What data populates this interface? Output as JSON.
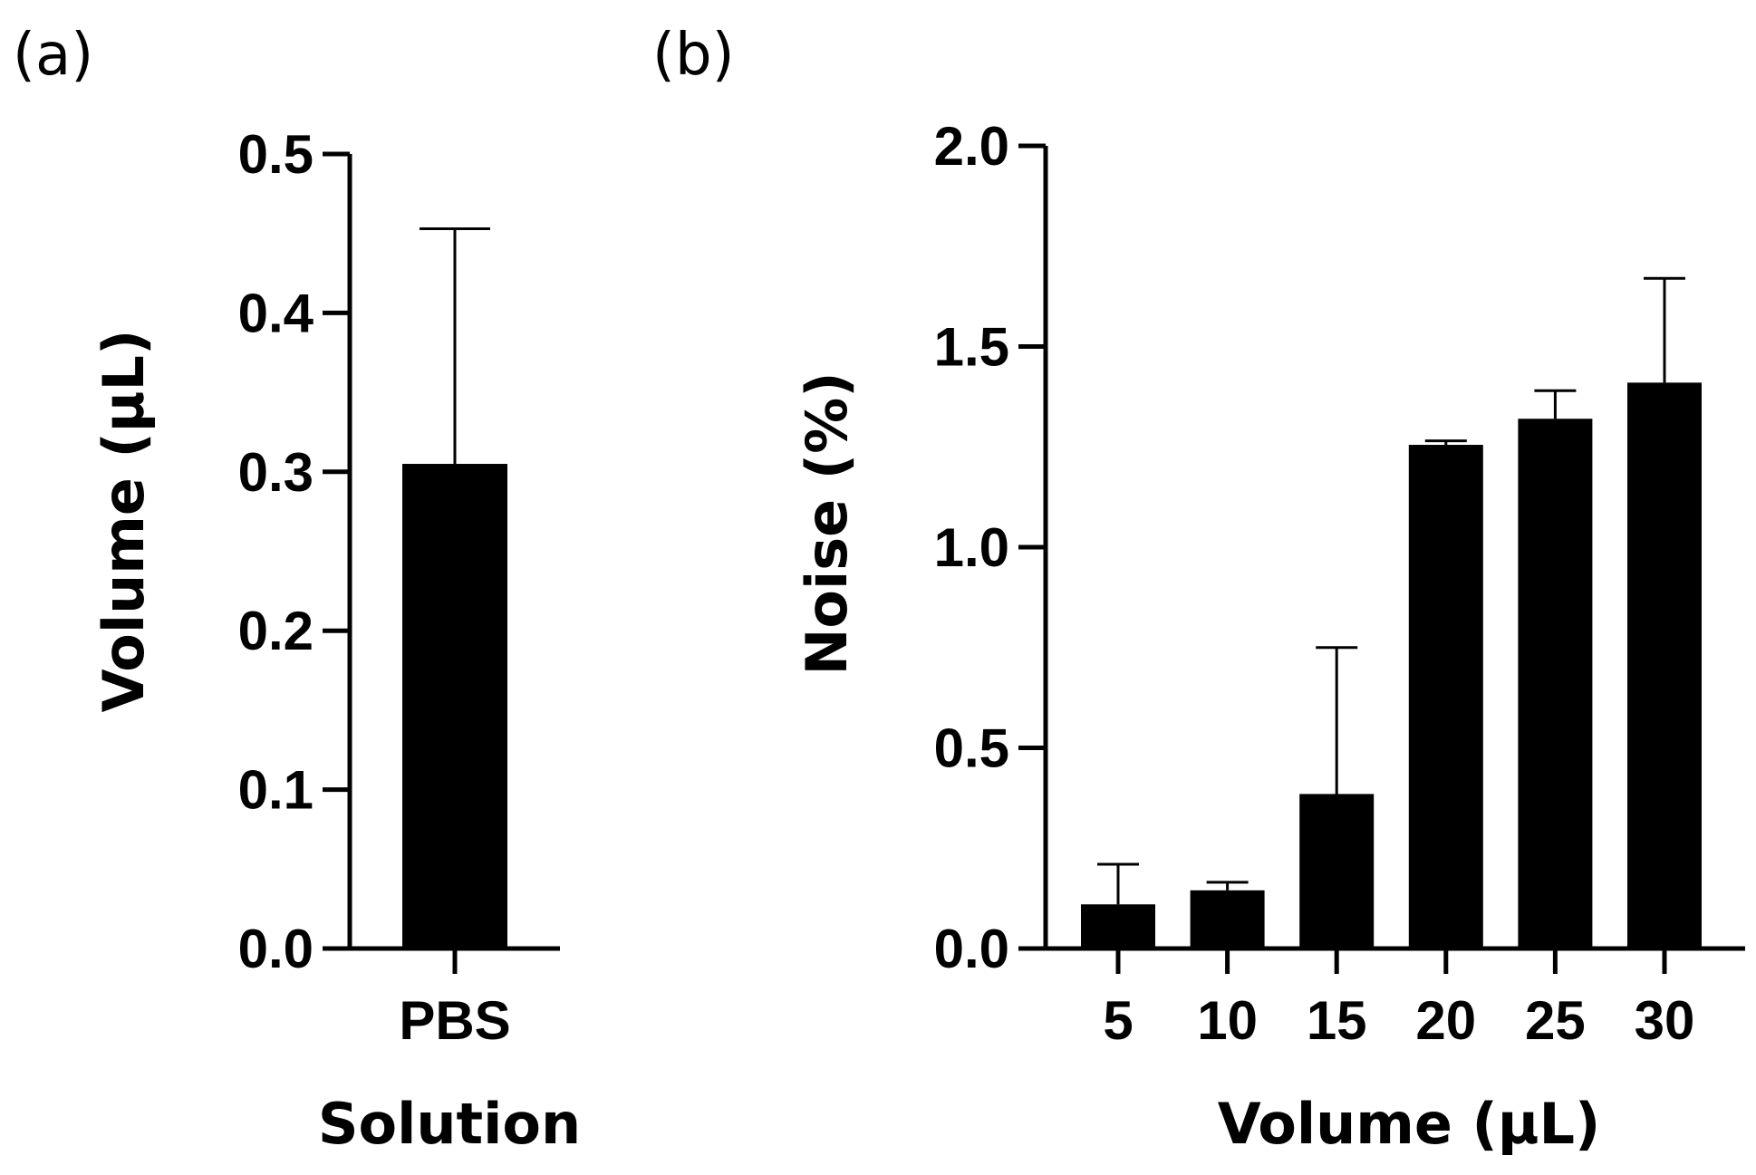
{
  "chart_data": [
    {
      "panel": "(a)",
      "type": "bar",
      "categories": [
        "PBS"
      ],
      "values": [
        0.305
      ],
      "error_upper": [
        0.453
      ],
      "ylim": [
        0,
        0.5
      ],
      "yticks": [
        "0.0",
        "0.1",
        "0.2",
        "0.3",
        "0.4",
        "0.5"
      ],
      "ylabel": "Volume (µL)",
      "xlabel": "Solution",
      "title": "",
      "grid": false,
      "bar_color": "#000000"
    },
    {
      "panel": "(b)",
      "type": "bar",
      "categories": [
        "5",
        "10",
        "15",
        "20",
        "25",
        "30"
      ],
      "values": [
        0.11,
        0.145,
        0.385,
        1.255,
        1.32,
        1.41
      ],
      "error_upper": [
        0.21,
        0.165,
        0.75,
        1.265,
        1.39,
        1.67
      ],
      "ylim": [
        0,
        2.0
      ],
      "yticks": [
        "0.0",
        "0.5",
        "1.0",
        "1.5",
        "2.0"
      ],
      "ylabel": "Noise (%)",
      "xlabel": "Volume (µL)",
      "title": "",
      "grid": false,
      "bar_color": "#000000"
    }
  ]
}
